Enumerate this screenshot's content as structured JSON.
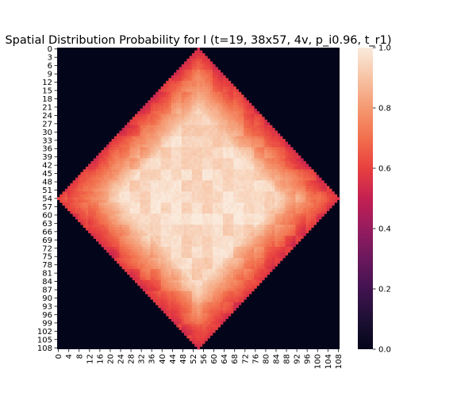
{
  "chart_data": {
    "type": "heatmap",
    "title": "Spatial Distribution Probability for I (t=19, 38x57, 4v, p_i0.96, t_r1)",
    "rows": 109,
    "cols": 109,
    "y_tick_labels": [
      "0",
      "3",
      "6",
      "9",
      "12",
      "15",
      "18",
      "21",
      "24",
      "27",
      "30",
      "33",
      "36",
      "39",
      "42",
      "45",
      "48",
      "51",
      "54",
      "57",
      "60",
      "63",
      "66",
      "69",
      "72",
      "75",
      "78",
      "81",
      "84",
      "87",
      "90",
      "93",
      "96",
      "99",
      "102",
      "105",
      "108"
    ],
    "x_tick_labels": [
      "0",
      "4",
      "8",
      "12",
      "16",
      "20",
      "24",
      "28",
      "32",
      "36",
      "40",
      "44",
      "48",
      "52",
      "56",
      "60",
      "64",
      "68",
      "72",
      "76",
      "80",
      "84",
      "88",
      "92",
      "96",
      "100",
      "104",
      "108"
    ],
    "colorbar": {
      "range": [
        0.0,
        1.0
      ],
      "tick_labels": [
        "0.0",
        "0.2",
        "0.4",
        "0.6",
        "0.8",
        "1.0"
      ]
    },
    "region": {
      "shape": "diamond",
      "center_row": 54,
      "center_col": 54,
      "radius": 54,
      "outside_value": 0.0,
      "edge_value": 0.56,
      "inner_value": 0.93,
      "center_value": 0.97
    }
  }
}
